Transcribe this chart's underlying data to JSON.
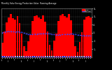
{
  "title": "Monthly Solar Energy Production Value  Running Average",
  "bar_color": "#FF0000",
  "avg_color": "#4444FF",
  "plot_bg": "#000000",
  "fig_bg": "#000000",
  "text_color": "#FFFFFF",
  "grid_color": "#555555",
  "months": [
    "Jan",
    "Feb",
    "Mar",
    "Apr",
    "May",
    "Jun",
    "Jul",
    "Aug",
    "Sep",
    "Oct",
    "Nov",
    "Dec",
    "Jan",
    "Feb",
    "Mar",
    "Apr",
    "May",
    "Jun",
    "Jul",
    "Aug",
    "Sep",
    "Oct",
    "Nov",
    "Dec",
    "Jan",
    "Feb",
    "Mar",
    "Apr",
    "May",
    "Jun",
    "Jul",
    "Aug",
    "Sep",
    "Oct",
    "Nov",
    "Dec",
    "Jan",
    "Feb",
    "Mar",
    "Apr",
    "May",
    "Jun"
  ],
  "values": [
    180,
    320,
    430,
    490,
    530,
    480,
    460,
    510,
    420,
    290,
    140,
    75,
    195,
    275,
    450,
    505,
    515,
    490,
    470,
    515,
    435,
    315,
    155,
    85,
    205,
    295,
    445,
    515,
    535,
    505,
    490,
    535,
    455,
    275,
    135,
    65,
    185,
    305,
    460,
    495,
    510,
    490
  ],
  "running_avg": [
    300,
    310,
    315,
    320,
    318,
    315,
    312,
    314,
    312,
    308,
    300,
    290,
    285,
    282,
    282,
    284,
    286,
    288,
    288,
    291,
    292,
    292,
    289,
    284,
    279,
    277,
    276,
    277,
    279,
    281,
    283,
    286,
    288,
    286,
    282,
    276,
    271,
    268,
    268,
    267,
    267,
    266
  ],
  "ylim": [
    0,
    600
  ],
  "ytick_vals": [
    100,
    200,
    300,
    400,
    500,
    600
  ],
  "ytick_labels": [
    "1..",
    "2..",
    "3..",
    "4..",
    "5..",
    "6.."
  ]
}
